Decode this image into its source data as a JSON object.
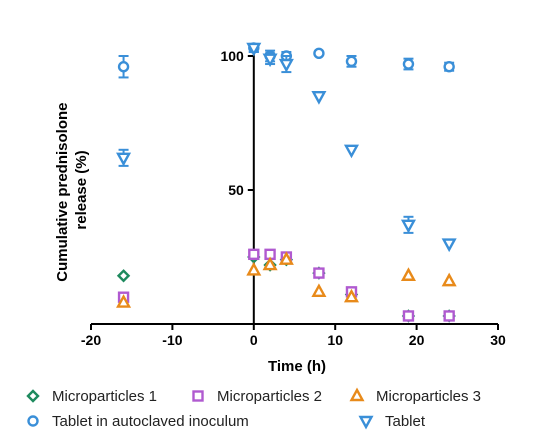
{
  "chart_data": {
    "type": "scatter",
    "title": "",
    "xlabel": "Time (h)",
    "ylabel_lines": [
      "Cumulative prednisolone",
      "release (%)"
    ],
    "xlim": [
      -20,
      30
    ],
    "ylim": [
      0,
      105
    ],
    "xticks": [
      -20,
      -10,
      0,
      10,
      20,
      30
    ],
    "yticks": [
      50,
      100
    ],
    "grid": false,
    "legend_position": "bottom",
    "series": [
      {
        "name": "Microparticles 1",
        "marker": "diamond",
        "color": "#1e8a5e",
        "points": [
          [
            -16,
            18
          ],
          [
            0,
            25
          ],
          [
            2,
            22
          ],
          [
            4,
            24
          ],
          [
            8,
            19
          ],
          [
            12,
            11
          ],
          [
            19,
            3
          ],
          [
            24,
            3
          ]
        ],
        "err": [
          0,
          0,
          0,
          0,
          0,
          0,
          0,
          0
        ]
      },
      {
        "name": "Microparticles 2",
        "marker": "square",
        "color": "#b05ad0",
        "points": [
          [
            -16,
            10
          ],
          [
            0,
            26
          ],
          [
            2,
            26
          ],
          [
            4,
            25
          ],
          [
            8,
            19
          ],
          [
            12,
            12
          ],
          [
            19,
            3
          ],
          [
            24,
            3
          ]
        ],
        "err": [
          0,
          0,
          0,
          0,
          0,
          0,
          0,
          0
        ]
      },
      {
        "name": "Microparticles 3",
        "marker": "triangle-up",
        "color": "#e88a1a",
        "points": [
          [
            -16,
            8
          ],
          [
            0,
            20
          ],
          [
            2,
            22
          ],
          [
            4,
            24
          ],
          [
            8,
            12
          ],
          [
            12,
            10
          ],
          [
            19,
            18
          ],
          [
            24,
            16
          ]
        ],
        "err": [
          0,
          0,
          0,
          0,
          0,
          0,
          0,
          0
        ]
      },
      {
        "name": "Tablet in autoclaved inoculum",
        "marker": "circle",
        "color": "#3a8fd8",
        "points": [
          [
            -16,
            96
          ],
          [
            0,
            103
          ],
          [
            2,
            100
          ],
          [
            4,
            100
          ],
          [
            8,
            101
          ],
          [
            12,
            98
          ],
          [
            19,
            97
          ],
          [
            24,
            96
          ]
        ],
        "err": [
          4,
          1.5,
          2,
          1.5,
          0,
          2,
          2,
          1.5
        ]
      },
      {
        "name": "Tablet",
        "marker": "triangle-down",
        "color": "#3a8fd8",
        "points": [
          [
            -16,
            62
          ],
          [
            0,
            103
          ],
          [
            2,
            99
          ],
          [
            4,
            97
          ],
          [
            8,
            85
          ],
          [
            12,
            65
          ],
          [
            19,
            37
          ],
          [
            24,
            30
          ]
        ],
        "err": [
          3,
          1.5,
          2,
          3,
          0,
          0,
          3,
          0
        ]
      }
    ]
  }
}
